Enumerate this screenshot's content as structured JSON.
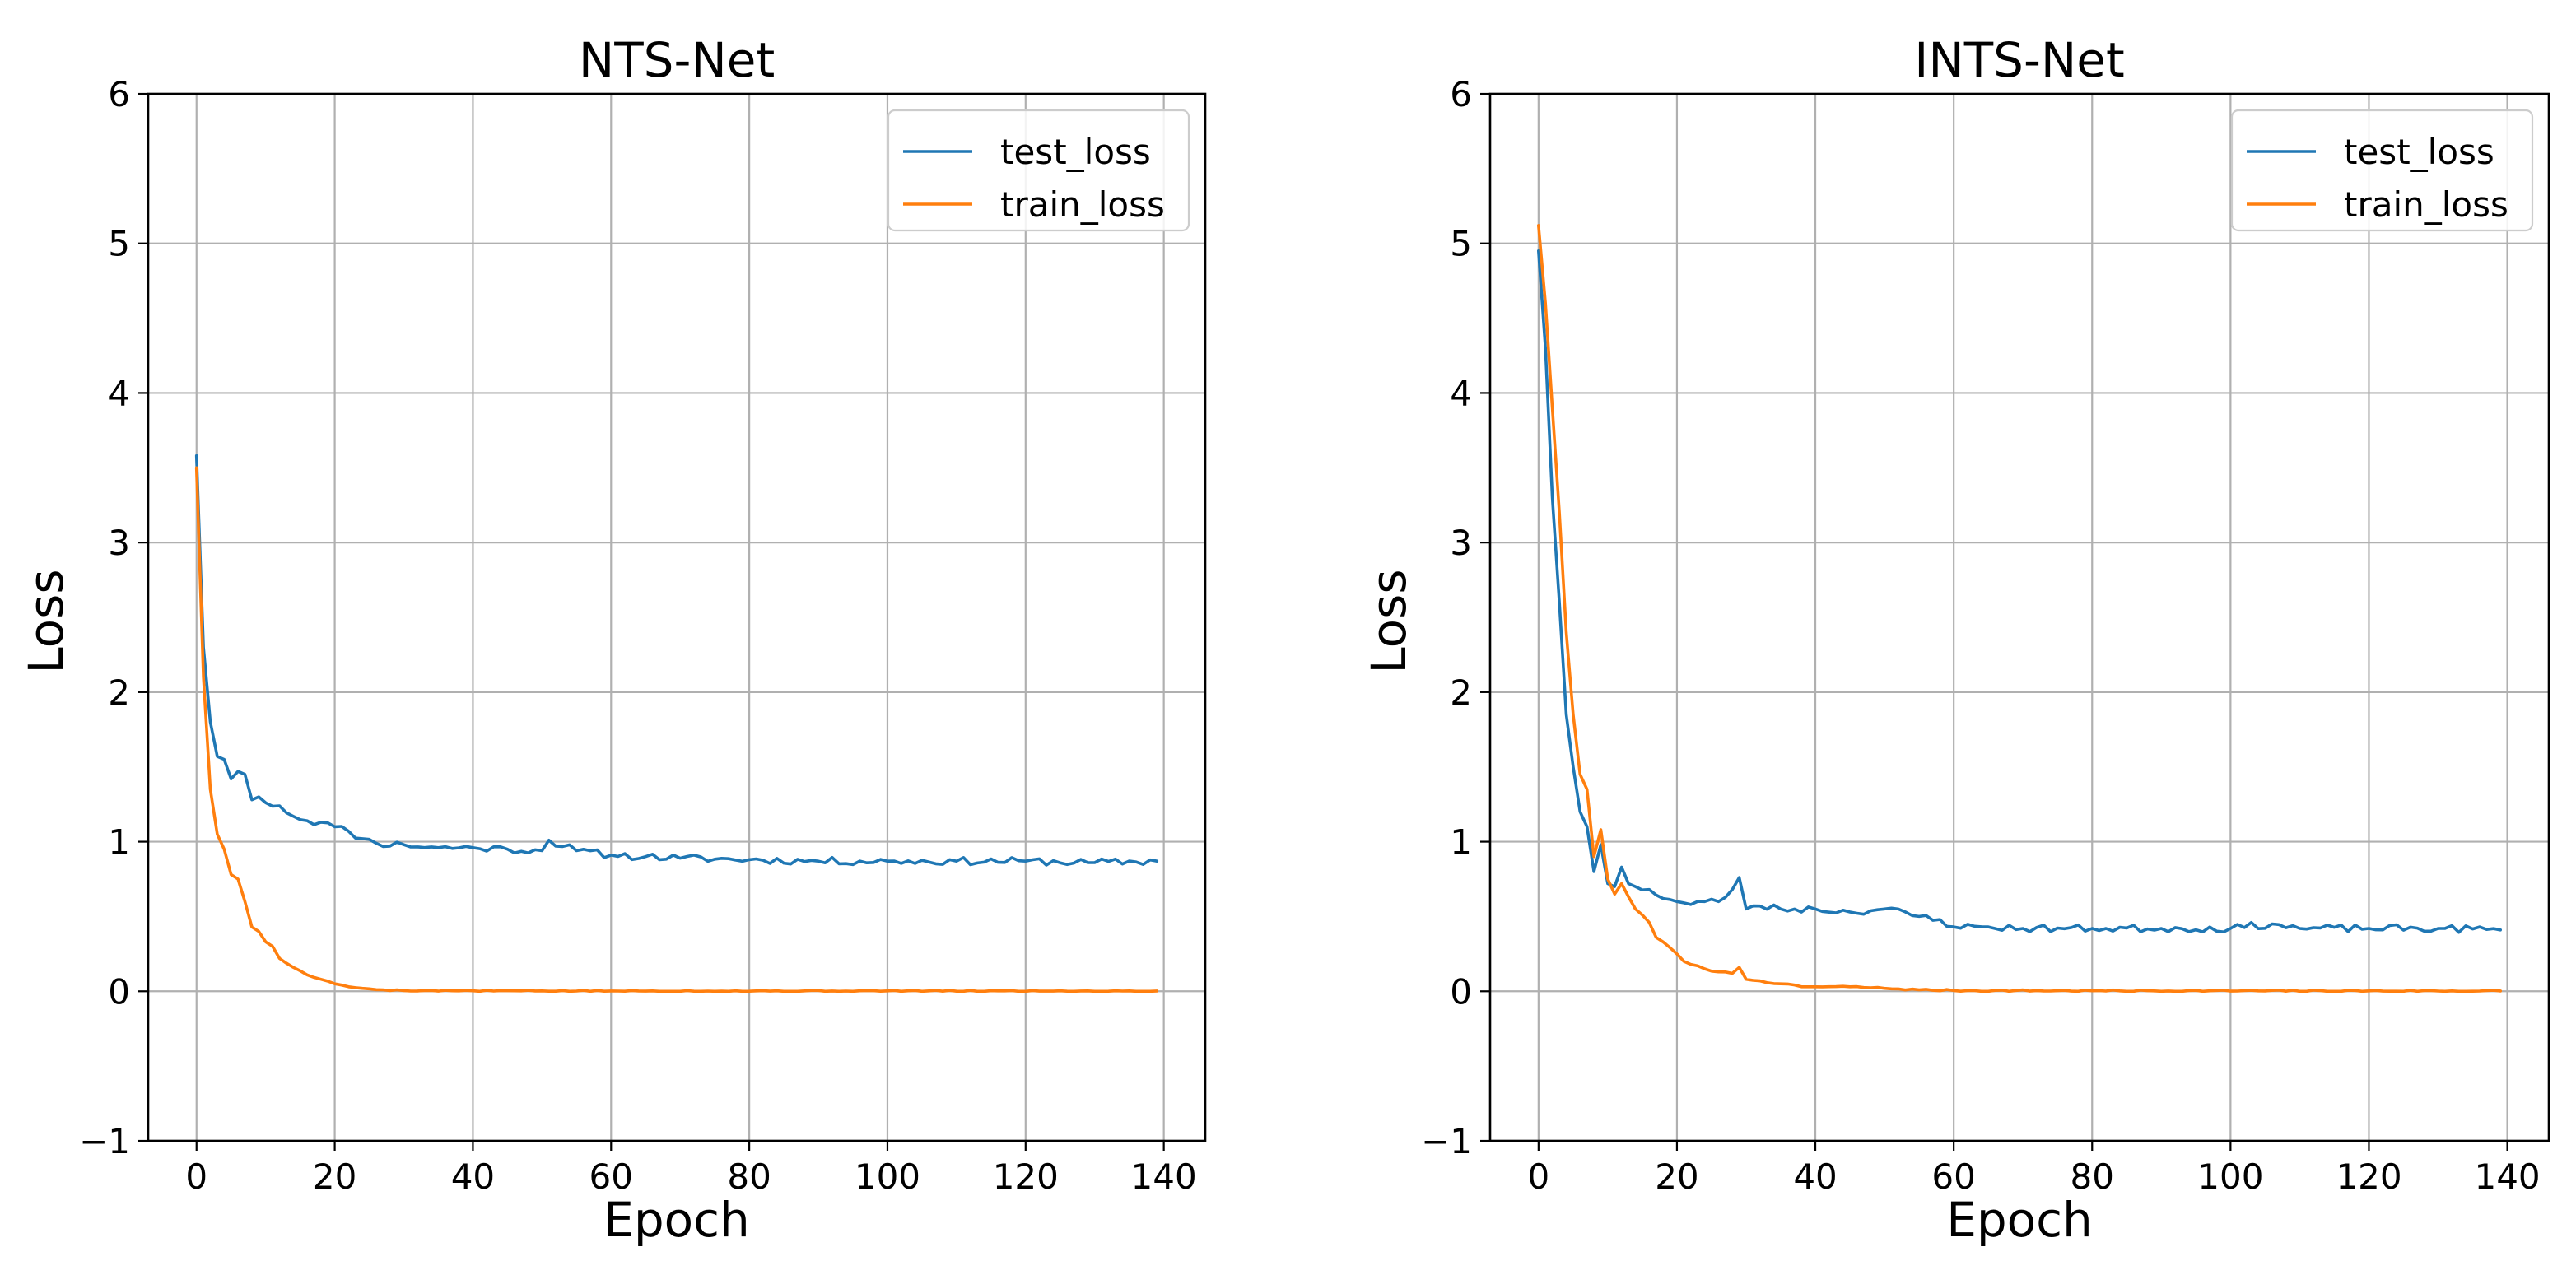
{
  "chart_data": [
    {
      "type": "line",
      "title": "NTS-Net",
      "xlabel": "Epoch",
      "ylabel": "Loss",
      "xlim": [
        -7,
        146
      ],
      "ylim": [
        -1,
        6
      ],
      "xticks": [
        0,
        20,
        40,
        60,
        80,
        100,
        120,
        140
      ],
      "xtick_labels": [
        "0",
        "20",
        "40",
        "60",
        "80",
        "100",
        "120",
        "140"
      ],
      "yticks": [
        -1,
        0,
        1,
        2,
        3,
        4,
        5,
        6
      ],
      "ytick_labels": [
        "−1",
        "0",
        "1",
        "2",
        "3",
        "4",
        "5",
        "6"
      ],
      "grid": true,
      "legend_position": "top-right",
      "series": [
        {
          "name": "test_loss",
          "color": "#1f77b4",
          "keypoints": [
            [
              0,
              3.58
            ],
            [
              1,
              2.3
            ],
            [
              2,
              1.8
            ],
            [
              3,
              1.57
            ],
            [
              4,
              1.55
            ],
            [
              5,
              1.42
            ],
            [
              6,
              1.47
            ],
            [
              7,
              1.45
            ],
            [
              8,
              1.28
            ],
            [
              9,
              1.3
            ],
            [
              10,
              1.26
            ],
            [
              12,
              1.24
            ],
            [
              14,
              1.17
            ],
            [
              16,
              1.14
            ],
            [
              18,
              1.13
            ],
            [
              20,
              1.1
            ],
            [
              22,
              1.07
            ],
            [
              24,
              1.02
            ],
            [
              26,
              0.99
            ],
            [
              30,
              0.98
            ],
            [
              35,
              0.96
            ],
            [
              40,
              0.96
            ],
            [
              45,
              0.95
            ],
            [
              50,
              0.94
            ],
            [
              51,
              1.01
            ],
            [
              55,
              0.94
            ],
            [
              60,
              0.91
            ],
            [
              65,
              0.9
            ],
            [
              70,
              0.89
            ],
            [
              80,
              0.88
            ],
            [
              90,
              0.87
            ],
            [
              100,
              0.87
            ],
            [
              110,
              0.87
            ],
            [
              120,
              0.87
            ],
            [
              130,
              0.86
            ],
            [
              139,
              0.87
            ]
          ],
          "noise": 0.025,
          "seed": 11
        },
        {
          "name": "train_loss",
          "color": "#ff7f0e",
          "keypoints": [
            [
              0,
              3.5
            ],
            [
              1,
              2.1
            ],
            [
              2,
              1.35
            ],
            [
              3,
              1.05
            ],
            [
              4,
              0.95
            ],
            [
              5,
              0.78
            ],
            [
              6,
              0.75
            ],
            [
              7,
              0.6
            ],
            [
              8,
              0.43
            ],
            [
              9,
              0.4
            ],
            [
              10,
              0.33
            ],
            [
              11,
              0.3
            ],
            [
              12,
              0.22
            ],
            [
              14,
              0.16
            ],
            [
              16,
              0.11
            ],
            [
              18,
              0.08
            ],
            [
              20,
              0.05
            ],
            [
              22,
              0.03
            ],
            [
              24,
              0.02
            ],
            [
              27,
              0.01
            ],
            [
              30,
              0.005
            ],
            [
              40,
              0.003
            ],
            [
              60,
              0.002
            ],
            [
              139,
              0.002
            ]
          ],
          "noise": 0.004,
          "seed": 5
        }
      ]
    },
    {
      "type": "line",
      "title": "INTS-Net",
      "xlabel": "Epoch",
      "ylabel": "Loss",
      "xlim": [
        -7,
        146
      ],
      "ylim": [
        -1,
        6
      ],
      "xticks": [
        0,
        20,
        40,
        60,
        80,
        100,
        120,
        140
      ],
      "xtick_labels": [
        "0",
        "20",
        "40",
        "60",
        "80",
        "100",
        "120",
        "140"
      ],
      "yticks": [
        -1,
        0,
        1,
        2,
        3,
        4,
        5,
        6
      ],
      "ytick_labels": [
        "−1",
        "0",
        "1",
        "2",
        "3",
        "4",
        "5",
        "6"
      ],
      "grid": true,
      "legend_position": "top-right",
      "series": [
        {
          "name": "test_loss",
          "color": "#1f77b4",
          "keypoints": [
            [
              0,
              4.95
            ],
            [
              1,
              4.3
            ],
            [
              2,
              3.3
            ],
            [
              3,
              2.6
            ],
            [
              4,
              1.85
            ],
            [
              5,
              1.5
            ],
            [
              6,
              1.2
            ],
            [
              7,
              1.1
            ],
            [
              8,
              0.8
            ],
            [
              9,
              0.98
            ],
            [
              10,
              0.72
            ],
            [
              11,
              0.7
            ],
            [
              12,
              0.83
            ],
            [
              13,
              0.72
            ],
            [
              14,
              0.7
            ],
            [
              16,
              0.68
            ],
            [
              18,
              0.62
            ],
            [
              20,
              0.6
            ],
            [
              22,
              0.58
            ],
            [
              24,
              0.6
            ],
            [
              26,
              0.6
            ],
            [
              28,
              0.68
            ],
            [
              29,
              0.76
            ],
            [
              30,
              0.55
            ],
            [
              32,
              0.57
            ],
            [
              35,
              0.55
            ],
            [
              40,
              0.55
            ],
            [
              45,
              0.53
            ],
            [
              50,
              0.55
            ],
            [
              55,
              0.5
            ],
            [
              58,
              0.48
            ],
            [
              60,
              0.43
            ],
            [
              65,
              0.43
            ],
            [
              70,
              0.42
            ],
            [
              80,
              0.42
            ],
            [
              90,
              0.42
            ],
            [
              100,
              0.42
            ],
            [
              106,
              0.45
            ],
            [
              110,
              0.42
            ],
            [
              120,
              0.42
            ],
            [
              130,
              0.42
            ],
            [
              139,
              0.41
            ]
          ],
          "noise": 0.025,
          "seed": 23
        },
        {
          "name": "train_loss",
          "color": "#ff7f0e",
          "keypoints": [
            [
              0,
              5.12
            ],
            [
              1,
              4.6
            ],
            [
              2,
              3.9
            ],
            [
              3,
              3.2
            ],
            [
              4,
              2.4
            ],
            [
              5,
              1.85
            ],
            [
              6,
              1.45
            ],
            [
              7,
              1.35
            ],
            [
              8,
              0.9
            ],
            [
              9,
              1.08
            ],
            [
              10,
              0.75
            ],
            [
              11,
              0.65
            ],
            [
              12,
              0.72
            ],
            [
              14,
              0.55
            ],
            [
              16,
              0.46
            ],
            [
              17,
              0.36
            ],
            [
              18,
              0.33
            ],
            [
              20,
              0.25
            ],
            [
              21,
              0.2
            ],
            [
              22,
              0.18
            ],
            [
              24,
              0.15
            ],
            [
              26,
              0.13
            ],
            [
              28,
              0.12
            ],
            [
              29,
              0.16
            ],
            [
              30,
              0.08
            ],
            [
              32,
              0.07
            ],
            [
              35,
              0.05
            ],
            [
              38,
              0.03
            ],
            [
              40,
              0.03
            ],
            [
              45,
              0.03
            ],
            [
              50,
              0.02
            ],
            [
              55,
              0.01
            ],
            [
              60,
              0.005
            ],
            [
              80,
              0.003
            ],
            [
              139,
              0.002
            ]
          ],
          "noise": 0.006,
          "seed": 7
        }
      ]
    }
  ]
}
